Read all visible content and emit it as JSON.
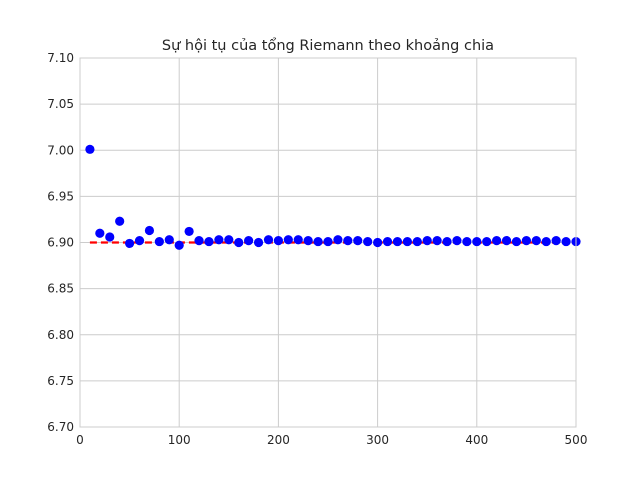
{
  "chart_data": {
    "type": "scatter",
    "title": "Sự hội tụ của tổng Riemann theo khoảng chia",
    "xlabel": "",
    "ylabel": "",
    "xlim": [
      0,
      500
    ],
    "ylim": [
      6.7,
      7.1
    ],
    "xticks": [
      0,
      100,
      200,
      300,
      400,
      500
    ],
    "yticks": [
      6.7,
      6.75,
      6.8,
      6.85,
      6.9,
      6.95,
      7.0,
      7.05,
      7.1
    ],
    "grid": true,
    "reference_line": {
      "y": 6.9,
      "color": "#ff0000",
      "style": "dashed"
    },
    "series": [
      {
        "color": "#0000ff",
        "x": [
          10,
          20,
          30,
          40,
          50,
          60,
          70,
          80,
          90,
          100,
          110,
          120,
          130,
          140,
          150,
          160,
          170,
          180,
          190,
          200,
          210,
          220,
          230,
          240,
          250,
          260,
          270,
          280,
          290,
          300,
          310,
          320,
          330,
          340,
          350,
          360,
          370,
          380,
          390,
          400,
          410,
          420,
          430,
          440,
          450,
          460,
          470,
          480,
          490,
          500
        ],
        "y": [
          7.001,
          6.91,
          6.906,
          6.923,
          6.899,
          6.902,
          6.913,
          6.901,
          6.903,
          6.897,
          6.912,
          6.902,
          6.901,
          6.903,
          6.903,
          6.9,
          6.902,
          6.9,
          6.903,
          6.902,
          6.903,
          6.903,
          6.902,
          6.901,
          6.901,
          6.903,
          6.902,
          6.902,
          6.901,
          6.9,
          6.901,
          6.901,
          6.901,
          6.901,
          6.902,
          6.902,
          6.901,
          6.902,
          6.901,
          6.901,
          6.901,
          6.902,
          6.902,
          6.901,
          6.902,
          6.902,
          6.901,
          6.902,
          6.901,
          6.901
        ]
      }
    ]
  }
}
